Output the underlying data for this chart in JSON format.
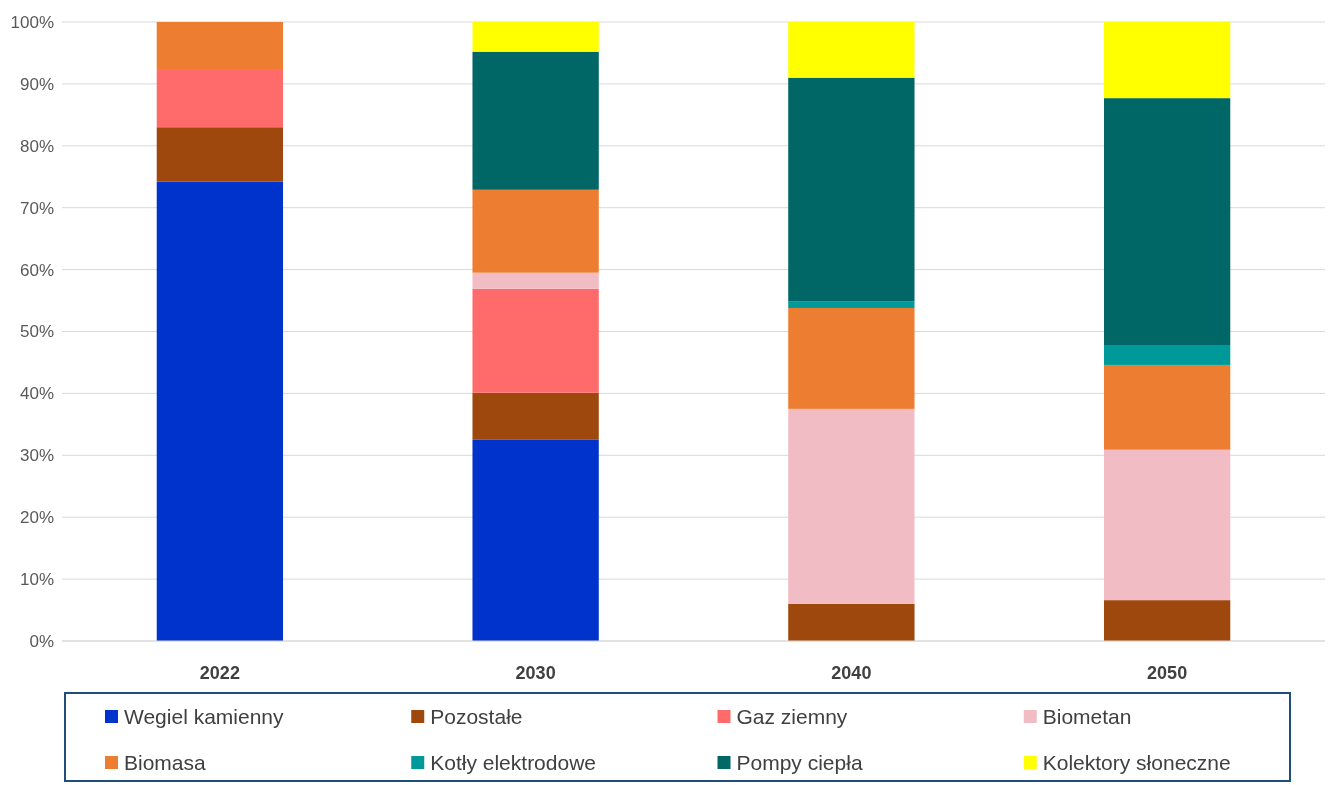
{
  "chart_data": {
    "type": "bar",
    "stacked": true,
    "categories": [
      "2022",
      "2030",
      "2040",
      "2050"
    ],
    "ylim": [
      0,
      100
    ],
    "yticks": [
      {
        "value": 0,
        "label": "0%"
      },
      {
        "value": 10,
        "label": "10%"
      },
      {
        "value": 20,
        "label": "20%"
      },
      {
        "value": 30,
        "label": "30%"
      },
      {
        "value": 40,
        "label": "40%"
      },
      {
        "value": 50,
        "label": "50%"
      },
      {
        "value": 60,
        "label": "60%"
      },
      {
        "value": 70,
        "label": "70%"
      },
      {
        "value": 80,
        "label": "80%"
      },
      {
        "value": 90,
        "label": "90%"
      },
      {
        "value": 100,
        "label": "100%"
      }
    ],
    "grid": "y",
    "legend": "bottom",
    "series": [
      {
        "name": "Wegiel kamienny",
        "color": "#0033cc",
        "values": [
          74.2,
          32.5,
          null,
          null
        ]
      },
      {
        "name": "Pozostałe",
        "color": "#9e480e",
        "values": [
          8.8,
          7.6,
          6.0,
          6.6
        ]
      },
      {
        "name": "Gaz ziemny",
        "color": "#ff6b6b",
        "values": [
          9.4,
          16.8,
          null,
          null
        ]
      },
      {
        "name": "Biometan",
        "color": "#f2bcc4",
        "values": [
          null,
          2.6,
          31.5,
          24.3
        ]
      },
      {
        "name": "Biomasa",
        "color": "#ed7d31",
        "values": [
          7.6,
          13.4,
          16.3,
          13.7
        ]
      },
      {
        "name": "Kotły elektrodowe",
        "color": "#009999",
        "values": [
          null,
          null,
          1.1,
          3.1
        ]
      },
      {
        "name": "Pompy ciepła",
        "color": "#006666",
        "values": [
          null,
          22.3,
          36.1,
          40.0
        ]
      },
      {
        "name": "Kolektory słoneczne",
        "color": "#ffff00",
        "values": [
          null,
          4.8,
          9.0,
          12.3
        ]
      }
    ]
  }
}
